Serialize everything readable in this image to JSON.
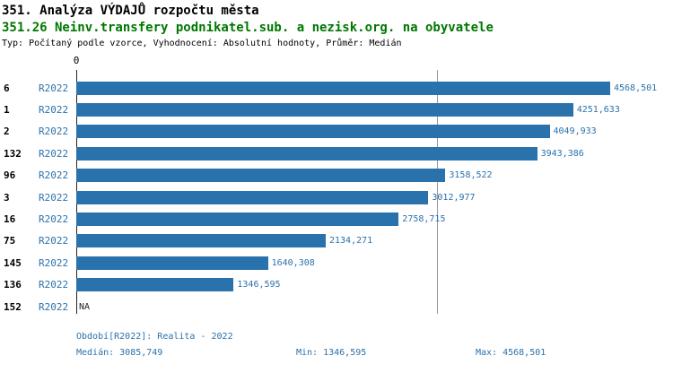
{
  "header": {
    "title1": "351. Analýza VÝDAJŮ rozpočtu města",
    "title2": "351.26 Neinv.transfery podnikatel.sub. a nezisk.org. na obyvatele",
    "subtitle": "Typ: Počítaný podle vzorce, Vyhodnocení: Absolutní hodnoty, Průměr: Medián"
  },
  "chart_data": {
    "type": "bar",
    "orientation": "horizontal",
    "title": "351.26 Neinv.transfery podnikatel.sub. a nezisk.org. na obyvatele",
    "x_axis": {
      "origin_label": "0",
      "min": 0,
      "max": 4568.501
    },
    "grid": "median-only",
    "median_value": 3085.749,
    "rows": [
      {
        "rank": "6",
        "period": "R2022",
        "value": 4568.501,
        "value_label": "4568,501"
      },
      {
        "rank": "1",
        "period": "R2022",
        "value": 4251.633,
        "value_label": "4251,633"
      },
      {
        "rank": "2",
        "period": "R2022",
        "value": 4049.933,
        "value_label": "4049,933"
      },
      {
        "rank": "132",
        "period": "R2022",
        "value": 3943.386,
        "value_label": "3943,386"
      },
      {
        "rank": "96",
        "period": "R2022",
        "value": 3158.522,
        "value_label": "3158,522"
      },
      {
        "rank": "3",
        "period": "R2022",
        "value": 3012.977,
        "value_label": "3012,977"
      },
      {
        "rank": "16",
        "period": "R2022",
        "value": 2758.715,
        "value_label": "2758,715"
      },
      {
        "rank": "75",
        "period": "R2022",
        "value": 2134.271,
        "value_label": "2134,271"
      },
      {
        "rank": "145",
        "period": "R2022",
        "value": 1640.308,
        "value_label": "1640,308"
      },
      {
        "rank": "136",
        "period": "R2022",
        "value": 1346.595,
        "value_label": "1346,595"
      },
      {
        "rank": "152",
        "period": "R2022",
        "value": null,
        "value_label": "NA"
      }
    ]
  },
  "footer": {
    "period_line": "Období[R2022]: Realita - 2022",
    "median_label": "Medián: 3085,749",
    "min_label": "Min: 1346,595",
    "max_label": "Max: 4568,501"
  },
  "colors": {
    "bar": "#2a72ac",
    "accent_text": "#2a72ac",
    "title2_green": "#007700",
    "median_line": "#999999",
    "axis_line": "#222222"
  }
}
